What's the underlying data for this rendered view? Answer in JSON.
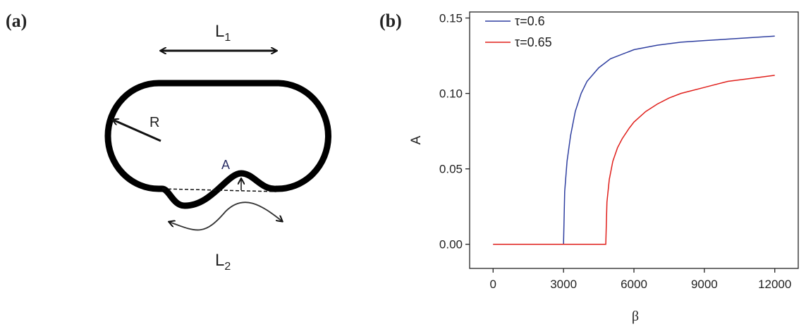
{
  "panels": [
    "(a)",
    "(b)"
  ],
  "diagram": {
    "labels": [
      {
        "text": "L",
        "sub": "1"
      },
      {
        "text": "R"
      },
      {
        "text": "A"
      },
      {
        "text": "L",
        "sub": "2"
      }
    ]
  },
  "chart_data": {
    "type": "line",
    "xlabel": "β",
    "ylabel": "A",
    "xlim": [
      -1000,
      13000
    ],
    "ylim": [
      -0.016,
      0.154
    ],
    "xticks": [
      0,
      3000,
      6000,
      9000,
      12000
    ],
    "yticks": [
      {
        "value": 0,
        "label": "0.00"
      },
      0.05,
      {
        "value": 0.1,
        "label": "0.10"
      },
      0.15
    ],
    "legend": "upper left",
    "series": [
      {
        "name": "τ=0.6",
        "color": "#2f3fa0",
        "x": [
          0,
          2990,
          3000,
          3050,
          3150,
          3300,
          3500,
          3750,
          4000,
          4500,
          5000,
          6000,
          7000,
          8000,
          9000,
          10000,
          11000,
          12000
        ],
        "values": [
          0,
          0,
          0,
          0.035,
          0.055,
          0.072,
          0.088,
          0.1,
          0.108,
          0.117,
          0.123,
          0.129,
          0.132,
          0.134,
          0.135,
          0.136,
          0.137,
          0.138
        ]
      },
      {
        "name": "τ=0.65",
        "color": "#e0201c",
        "x": [
          0,
          4800,
          4850,
          4950,
          5100,
          5300,
          5500,
          5800,
          6000,
          6500,
          7000,
          7500,
          8000,
          9000,
          10000,
          11000,
          12000
        ],
        "values": [
          0,
          0,
          0.028,
          0.043,
          0.055,
          0.064,
          0.07,
          0.077,
          0.081,
          0.088,
          0.093,
          0.097,
          0.1,
          0.104,
          0.108,
          0.11,
          0.112
        ]
      }
    ]
  }
}
